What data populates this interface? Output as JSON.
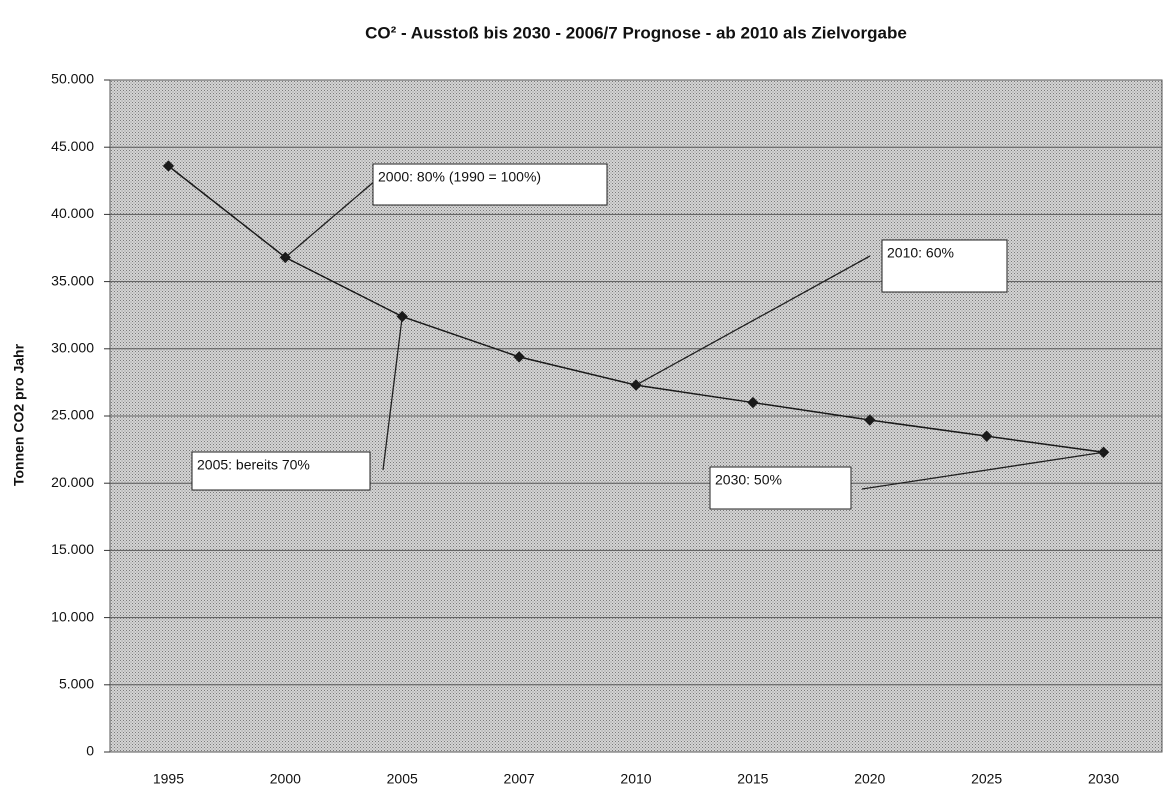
{
  "chart_data": {
    "type": "line",
    "title": "CO² - Ausstoß bis 2030 - 2006/7 Prognose - ab 2010 als Zielvorgabe",
    "y_label": "Tonnen CO2 pro Jahr",
    "categories": [
      "1995",
      "2000",
      "2005",
      "2007",
      "2010",
      "2015",
      "2020",
      "2025",
      "2030"
    ],
    "values": [
      43600,
      36800,
      32400,
      29400,
      27300,
      26000,
      24700,
      23500,
      22300
    ],
    "color": "#1a1a1a",
    "ylim": [
      0,
      50000
    ],
    "yticks": [
      0,
      {
        "value": 5000,
        "label": "5.000"
      },
      {
        "value": 10000,
        "label": "10.000"
      },
      {
        "value": 15000,
        "label": "15.000"
      },
      {
        "value": 20000,
        "label": "20.000"
      },
      {
        "value": 25000,
        "label": "25.000"
      },
      {
        "value": 30000,
        "label": "30.000"
      },
      {
        "value": 35000,
        "label": "35.000"
      },
      {
        "value": 40000,
        "label": "40.000"
      },
      {
        "value": 45000,
        "label": "45.000"
      },
      {
        "value": 50000,
        "label": "50.000"
      }
    ],
    "grid": true,
    "annotations": [
      "2000: 80%  (1990 = 100%)",
      "2010: 60%",
      "2005: bereits 70%",
      "2030: 50%"
    ]
  }
}
